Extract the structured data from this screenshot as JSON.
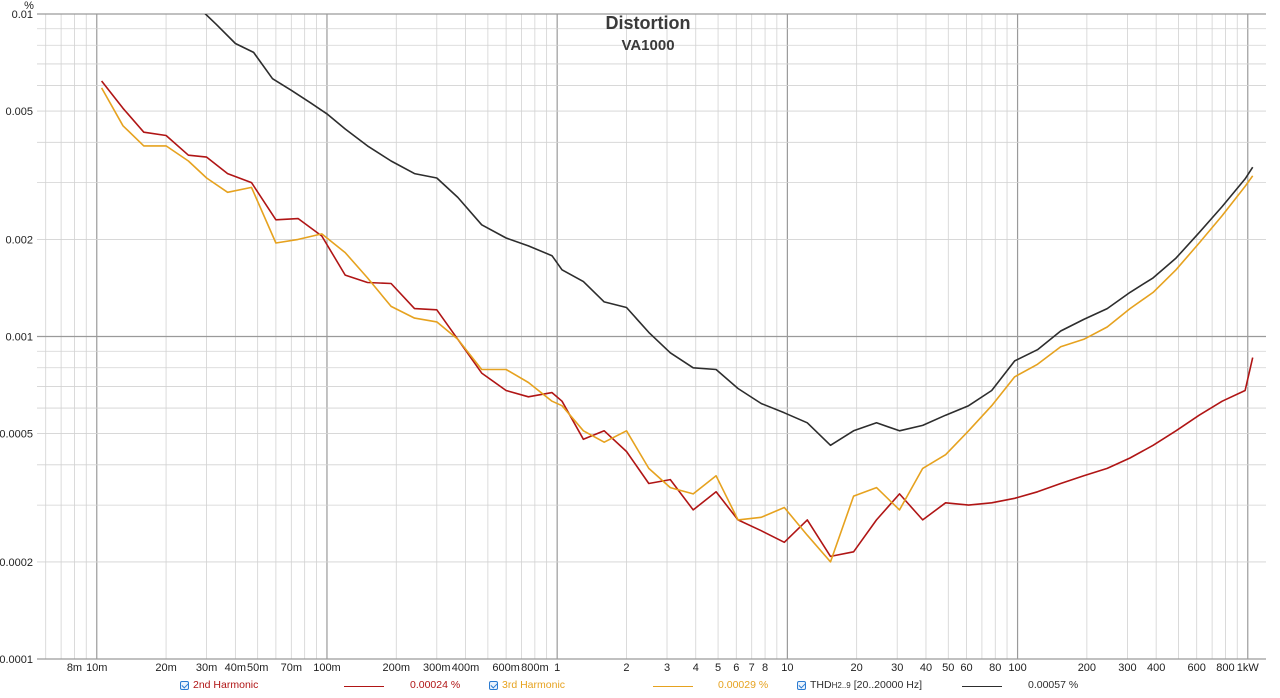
{
  "chart_data": {
    "type": "line",
    "title": "Distortion",
    "subtitle": "VA1000",
    "ylabel": "%",
    "xlabel": "",
    "xscale": "log",
    "yscale": "log",
    "xlim": [
      0.0055,
      1200
    ],
    "ylim": [
      0.0001,
      0.01
    ],
    "grid": true,
    "x_ticks": [
      {
        "v": 0.008,
        "label": "8m"
      },
      {
        "v": 0.01,
        "label": "10m"
      },
      {
        "v": 0.02,
        "label": "20m"
      },
      {
        "v": 0.03,
        "label": "30m"
      },
      {
        "v": 0.04,
        "label": "40m"
      },
      {
        "v": 0.05,
        "label": "50m"
      },
      {
        "v": 0.07,
        "label": "70m"
      },
      {
        "v": 0.1,
        "label": "100m"
      },
      {
        "v": 0.2,
        "label": "200m"
      },
      {
        "v": 0.3,
        "label": "300m"
      },
      {
        "v": 0.4,
        "label": "400m"
      },
      {
        "v": 0.6,
        "label": "600m"
      },
      {
        "v": 0.8,
        "label": "800m"
      },
      {
        "v": 1,
        "label": "1"
      },
      {
        "v": 2,
        "label": "2"
      },
      {
        "v": 3,
        "label": "3"
      },
      {
        "v": 4,
        "label": "4"
      },
      {
        "v": 5,
        "label": "5"
      },
      {
        "v": 6,
        "label": "6"
      },
      {
        "v": 7,
        "label": "7"
      },
      {
        "v": 8,
        "label": "8"
      },
      {
        "v": 10,
        "label": "10"
      },
      {
        "v": 20,
        "label": "20"
      },
      {
        "v": 30,
        "label": "30"
      },
      {
        "v": 40,
        "label": "40"
      },
      {
        "v": 50,
        "label": "50"
      },
      {
        "v": 60,
        "label": "60"
      },
      {
        "v": 80,
        "label": "80"
      },
      {
        "v": 100,
        "label": "100"
      },
      {
        "v": 200,
        "label": "200"
      },
      {
        "v": 300,
        "label": "300"
      },
      {
        "v": 400,
        "label": "400"
      },
      {
        "v": 600,
        "label": "600"
      },
      {
        "v": 800,
        "label": "800"
      },
      {
        "v": 1000,
        "label": "1kW"
      }
    ],
    "y_ticks": [
      {
        "v": 0.01,
        "label": "0.01"
      },
      {
        "v": 0.005,
        "label": "0.005"
      },
      {
        "v": 0.002,
        "label": "0.002"
      },
      {
        "v": 0.001,
        "label": "0.001"
      },
      {
        "v": 0.0005,
        "label": "0.0005"
      },
      {
        "v": 0.0002,
        "label": "0.0002"
      },
      {
        "v": 0.0001,
        "label": "0.0001"
      }
    ],
    "series": [
      {
        "name": "2nd Harmonic",
        "color": "#b01515",
        "readout": "0.00024 %",
        "x": [
          0.0105,
          0.013,
          0.016,
          0.02,
          0.025,
          0.03,
          0.037,
          0.047,
          0.06,
          0.075,
          0.095,
          0.12,
          0.15,
          0.19,
          0.24,
          0.3,
          0.37,
          0.47,
          0.6,
          0.75,
          0.95,
          1.05,
          1.3,
          1.6,
          2.0,
          2.5,
          3.1,
          3.9,
          4.9,
          6.1,
          7.7,
          9.7,
          12.2,
          15.4,
          19.4,
          24.4,
          30.7,
          38.7,
          48.7,
          61.3,
          77.2,
          97.2,
          122,
          154,
          194,
          245,
          308,
          388,
          488,
          615,
          774,
          974,
          1050
        ],
        "y": [
          0.0062,
          0.0051,
          0.0043,
          0.0042,
          0.00365,
          0.0036,
          0.0032,
          0.003,
          0.0023,
          0.00232,
          0.00205,
          0.00155,
          0.00147,
          0.00146,
          0.00122,
          0.00121,
          0.00098,
          0.00077,
          0.00068,
          0.00065,
          0.00067,
          0.00063,
          0.00048,
          0.00051,
          0.00044,
          0.00035,
          0.00036,
          0.00029,
          0.00033,
          0.00027,
          0.00025,
          0.00023,
          0.00027,
          0.000208,
          0.000215,
          0.00027,
          0.000325,
          0.00027,
          0.000305,
          0.0003,
          0.000305,
          0.000315,
          0.00033,
          0.00035,
          0.00037,
          0.00039,
          0.00042,
          0.00046,
          0.00051,
          0.00057,
          0.00063,
          0.00068,
          0.00086
        ]
      },
      {
        "name": "3rd Harmonic",
        "color": "#e6a21f",
        "readout": "0.00029 %",
        "x": [
          0.0105,
          0.013,
          0.016,
          0.02,
          0.025,
          0.03,
          0.037,
          0.047,
          0.06,
          0.075,
          0.095,
          0.12,
          0.15,
          0.19,
          0.24,
          0.3,
          0.37,
          0.47,
          0.6,
          0.75,
          0.95,
          1.05,
          1.3,
          1.6,
          2.0,
          2.5,
          3.1,
          3.9,
          4.9,
          6.1,
          7.7,
          9.7,
          12.2,
          15.4,
          19.4,
          24.4,
          30.7,
          38.7,
          48.7,
          61.3,
          77.2,
          97.2,
          122,
          154,
          194,
          245,
          308,
          388,
          488,
          615,
          774,
          974,
          1050
        ],
        "y": [
          0.0059,
          0.0045,
          0.0039,
          0.0039,
          0.0035,
          0.0031,
          0.0028,
          0.0029,
          0.00195,
          0.002,
          0.00208,
          0.00182,
          0.00152,
          0.00124,
          0.00114,
          0.00111,
          0.00098,
          0.00079,
          0.00079,
          0.00072,
          0.00063,
          0.00061,
          0.00051,
          0.00047,
          0.00051,
          0.00039,
          0.00034,
          0.000325,
          0.00037,
          0.00027,
          0.000275,
          0.000295,
          0.000242,
          0.0002,
          0.00032,
          0.00034,
          0.00029,
          0.00039,
          0.00043,
          0.00051,
          0.00061,
          0.00075,
          0.00082,
          0.00093,
          0.00098,
          0.00107,
          0.00122,
          0.00137,
          0.00161,
          0.00195,
          0.00237,
          0.00292,
          0.00315
        ]
      },
      {
        "name": "THD",
        "name_sub": "H2..9",
        "name_suffix": "[20..20000 Hz]",
        "color": "#2d2d2d",
        "readout": "0.00057 %",
        "x": [
          0.028,
          0.033,
          0.04,
          0.048,
          0.058,
          0.07,
          0.085,
          0.1,
          0.12,
          0.15,
          0.19,
          0.24,
          0.3,
          0.37,
          0.47,
          0.6,
          0.75,
          0.95,
          1.05,
          1.3,
          1.6,
          2.0,
          2.5,
          3.1,
          3.9,
          4.9,
          6.1,
          7.7,
          9.7,
          12.2,
          15.4,
          19.4,
          24.4,
          30.7,
          38.7,
          48.7,
          61.3,
          77.2,
          97.2,
          122,
          154,
          194,
          245,
          308,
          388,
          488,
          615,
          774,
          974,
          1050
        ],
        "y": [
          0.0104,
          0.0093,
          0.0081,
          0.0076,
          0.0063,
          0.0058,
          0.0053,
          0.0049,
          0.0044,
          0.0039,
          0.0035,
          0.0032,
          0.0031,
          0.0027,
          0.00222,
          0.00202,
          0.00191,
          0.00178,
          0.00161,
          0.00148,
          0.00128,
          0.00123,
          0.00103,
          0.00089,
          0.0008,
          0.00079,
          0.00069,
          0.00062,
          0.00058,
          0.00054,
          0.00046,
          0.00051,
          0.00054,
          0.00051,
          0.00053,
          0.00057,
          0.00061,
          0.00068,
          0.00084,
          0.00091,
          0.00104,
          0.00113,
          0.00122,
          0.00137,
          0.00152,
          0.00175,
          0.0021,
          0.00253,
          0.00308,
          0.00335
        ]
      }
    ]
  }
}
